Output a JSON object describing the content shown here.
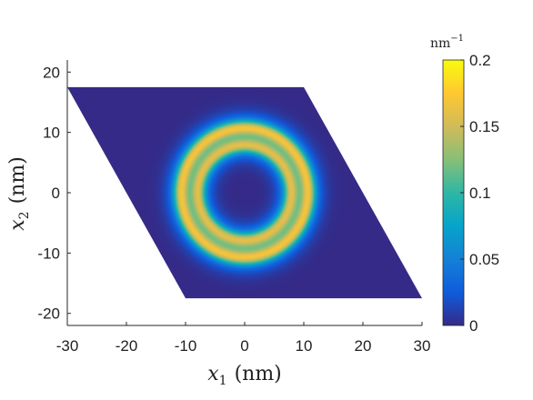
{
  "chart_data": {
    "type": "heatmap",
    "title": "",
    "xlabel_var": "x",
    "xlabel_sub": "1",
    "xlabel_unit": "(nm)",
    "ylabel_var": "x",
    "ylabel_sub": "2",
    "ylabel_unit": "(nm)",
    "xlim": [
      -30,
      30
    ],
    "ylim": [
      -22,
      22
    ],
    "xticks": [
      -30,
      -20,
      -10,
      0,
      10,
      20,
      30
    ],
    "yticks": [
      -20,
      -10,
      0,
      10,
      20
    ],
    "xtick_labels": [
      "-30",
      "-20",
      "-10",
      "0",
      "10",
      "20",
      "30"
    ],
    "ytick_labels": [
      "-20",
      "-10",
      "0",
      "10",
      "20"
    ],
    "domain": {
      "shape": "parallelogram",
      "vertices": [
        [
          -30,
          17.5
        ],
        [
          10,
          17.5
        ],
        [
          30,
          -17.5
        ],
        [
          -10,
          -17.5
        ]
      ]
    },
    "field": {
      "description_values": "radially symmetric ring density centred at origin",
      "center": [
        0,
        0
      ],
      "background_value": 0.0,
      "rings": [
        {
          "radius": 7.8,
          "peak_value": 0.15
        },
        {
          "radius": 10.8,
          "peak_value": 0.16
        }
      ],
      "inner_value": 0.01
    },
    "colorbar": {
      "label_base": "nm",
      "label_exp": "−1",
      "range": [
        0,
        0.2
      ],
      "ticks": [
        0,
        0.05,
        0.1,
        0.15,
        0.2
      ],
      "tick_labels": [
        "0",
        "0.05",
        "0.1",
        "0.15",
        "0.2"
      ],
      "colormap": "parula",
      "colormap_stops": [
        "#352a87",
        "#0f5cdd",
        "#1481d6",
        "#06a4ca",
        "#2eb7a4",
        "#87bf77",
        "#d1bb59",
        "#fec832",
        "#f9fb0e"
      ]
    },
    "grid": false
  }
}
